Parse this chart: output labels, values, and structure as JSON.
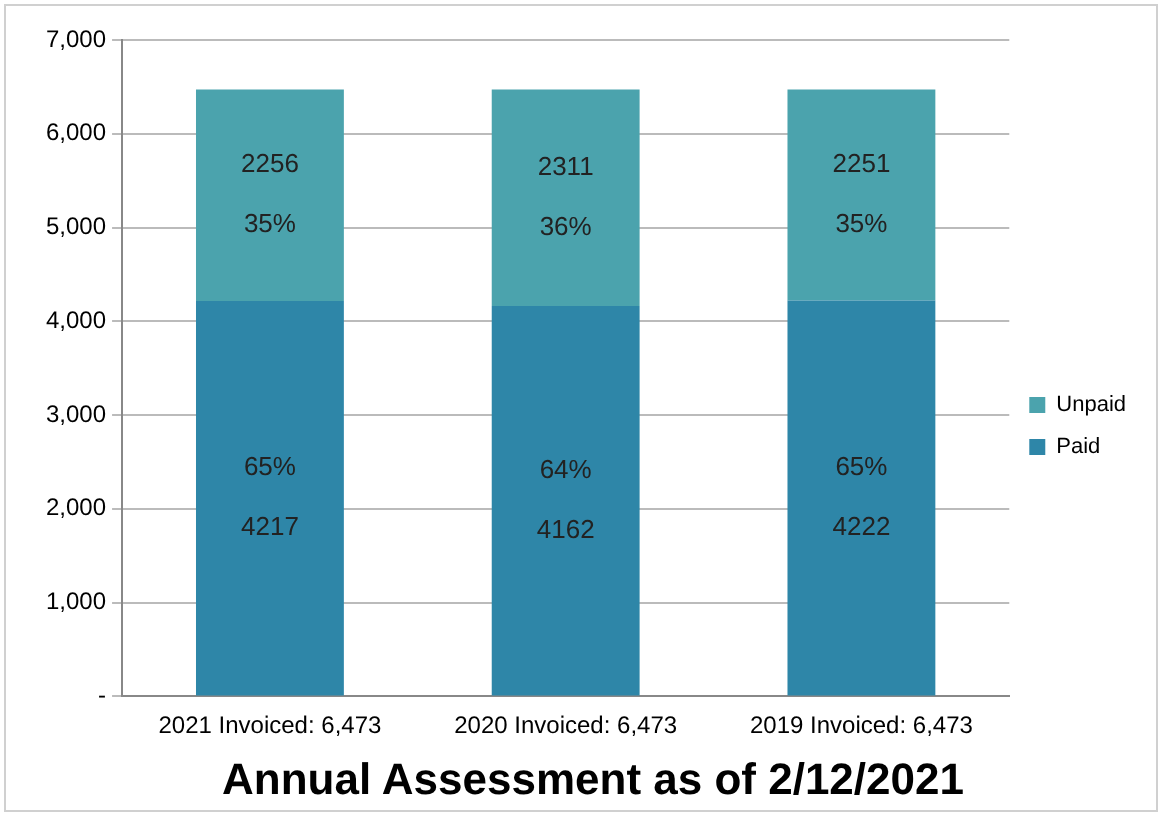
{
  "chart_data": {
    "type": "bar",
    "title": "Annual Assessment as of 2/12/2021",
    "stacked": true,
    "categories": [
      "2021 Invoiced: 6,473",
      "2020 Invoiced: 6,473",
      "2019 Invoiced: 6,473"
    ],
    "series": [
      {
        "name": "Paid",
        "color": "#2e86a8",
        "values": [
          4217,
          4162,
          4222
        ],
        "value_labels": [
          "65%\n4217",
          "64%\n4162",
          "65%\n4222"
        ]
      },
      {
        "name": "Unpaid",
        "color": "#4ba3ad",
        "values": [
          2256,
          2311,
          2251
        ],
        "value_labels": [
          "2256\n35%",
          "2311\n36%",
          "2251\n35%"
        ]
      }
    ],
    "ylim": [
      0,
      7000
    ],
    "yticks": [
      {
        "value": 0,
        "label": "-"
      },
      {
        "value": 1000,
        "label": "1,000"
      },
      {
        "value": 2000,
        "label": "2,000"
      },
      {
        "value": 3000,
        "label": "3,000"
      },
      {
        "value": 4000,
        "label": "4,000"
      },
      {
        "value": 5000,
        "label": "5,000"
      },
      {
        "value": 6000,
        "label": "6,000"
      },
      {
        "value": 7000,
        "label": "7,000"
      }
    ],
    "grid": "y",
    "legend": "right"
  }
}
